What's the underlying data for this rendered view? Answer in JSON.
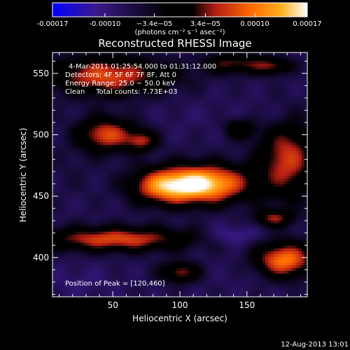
{
  "chart_data": {
    "type": "heatmap",
    "title": "Reconstructed RHESSI Image",
    "xlabel": "Heliocentric X (arcsec)",
    "ylabel": "Heliocentric Y (arcsec)",
    "xlim": [
      5,
      195
    ],
    "ylim": [
      368,
      567
    ],
    "xticks": [
      50,
      100,
      150
    ],
    "yticks": [
      400,
      450,
      500,
      550
    ],
    "colorbar": {
      "range": [
        -0.00017,
        0.00017
      ],
      "tick_values": [
        -0.00017,
        -0.0001,
        -3.4e-05,
        3.4e-05,
        0.0001,
        0.00017
      ],
      "tick_labels": [
        "-0.00017",
        "-0.00010",
        "−3.4e−05",
        "3.4e−05",
        "0.00010",
        "0.00017"
      ],
      "units": "(photons cm⁻² s⁻¹ asec⁻²)",
      "colormap": [
        "#0000ff",
        "#3a1a8c",
        "#000000",
        "#b41e14",
        "#ff6a00",
        "#ffb020",
        "#ffffff"
      ]
    },
    "annotations": [
      "4-Mar-2011 01:25:54.000 to 01:31:12.000",
      "Detectors: 4F 5F 6F 7F 8F, Att 0",
      "Energy Range: 25.0 − 50.0 keV",
      "Clean     Total counts: 7.73E+03"
    ],
    "peak_label": "Position of Peak = [120,460]",
    "date_stamp": "12-Aug-2013 13:01",
    "sources": [
      {
        "x": 120,
        "y": 460,
        "value": 0.00017,
        "sx": 22,
        "sy": 11
      },
      {
        "x": 88,
        "y": 458,
        "value": 0.00011,
        "sx": 18,
        "sy": 10
      },
      {
        "x": 45,
        "y": 500,
        "value": 0.0001,
        "sx": 15,
        "sy": 10
      },
      {
        "x": 72,
        "y": 495,
        "value": 6e-05,
        "sx": 8,
        "sy": 6
      },
      {
        "x": 45,
        "y": 548,
        "value": 0.0001,
        "sx": 30,
        "sy": 11
      },
      {
        "x": 180,
        "y": 480,
        "value": 9e-05,
        "sx": 15,
        "sy": 22
      },
      {
        "x": 140,
        "y": 558,
        "value": 6e-05,
        "sx": 16,
        "sy": 6
      },
      {
        "x": 170,
        "y": 556,
        "value": 5e-05,
        "sx": 10,
        "sy": 5
      },
      {
        "x": 52,
        "y": 415,
        "value": 0.0001,
        "sx": 40,
        "sy": 7
      },
      {
        "x": 178,
        "y": 398,
        "value": 0.00013,
        "sx": 15,
        "sy": 10
      },
      {
        "x": 170,
        "y": 432,
        "value": 6e-05,
        "sx": 10,
        "sy": 5
      },
      {
        "x": 100,
        "y": 388,
        "value": 7e-05,
        "sx": 10,
        "sy": 6
      },
      {
        "x": 145,
        "y": 505,
        "value": 4e-05,
        "sx": 8,
        "sy": 6
      },
      {
        "x": 20,
        "y": 470,
        "value": -3e-05,
        "sx": 14,
        "sy": 14
      },
      {
        "x": 110,
        "y": 515,
        "value": -5e-05,
        "sx": 18,
        "sy": 10
      },
      {
        "x": 165,
        "y": 515,
        "value": -6e-05,
        "sx": 14,
        "sy": 8
      },
      {
        "x": 140,
        "y": 418,
        "value": -9e-05,
        "sx": 14,
        "sy": 6
      },
      {
        "x": 150,
        "y": 385,
        "value": -5e-05,
        "sx": 14,
        "sy": 8
      },
      {
        "x": 25,
        "y": 380,
        "value": -6e-05,
        "sx": 18,
        "sy": 10
      },
      {
        "x": 60,
        "y": 440,
        "value": -4e-05,
        "sx": 15,
        "sy": 6
      },
      {
        "x": 20,
        "y": 525,
        "value": -4e-05,
        "sx": 12,
        "sy": 8
      },
      {
        "x": 95,
        "y": 545,
        "value": -3e-05,
        "sx": 18,
        "sy": 8
      },
      {
        "x": 105,
        "y": 425,
        "value": -4e-05,
        "sx": 15,
        "sy": 6
      }
    ]
  }
}
